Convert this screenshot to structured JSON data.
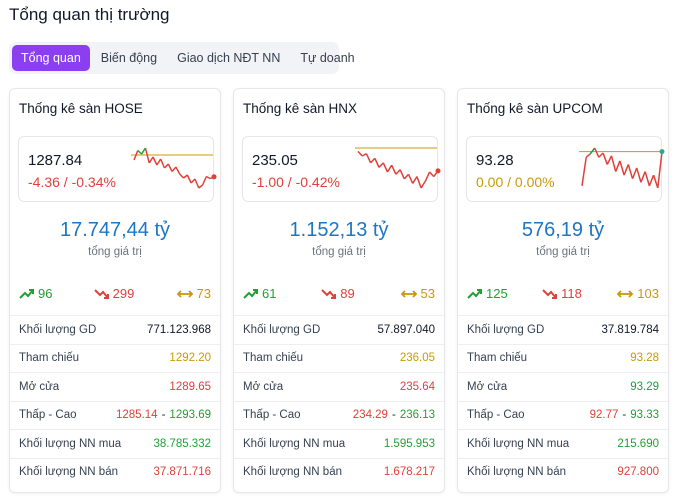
{
  "page": {
    "title": "Tổng quan thị trường"
  },
  "tabs": [
    {
      "label": "Tổng quan",
      "active": true
    },
    {
      "label": "Biến động",
      "active": false
    },
    {
      "label": "Giao dịch NĐT NN",
      "active": false
    },
    {
      "label": "Tự doanh",
      "active": false
    }
  ],
  "colors": {
    "up": "#22a034",
    "down": "#e0403a",
    "ref": "#c99a06",
    "accent": "#8b3ff0",
    "total": "#1d76c3"
  },
  "row_labels": {
    "volume": "Khối lượng GD",
    "ref": "Tham chiếu",
    "open": "Mở cửa",
    "range": "Thấp - Cao",
    "range_sep": "-",
    "foreign_buy": "Khối lượng NN mua",
    "foreign_sell": "Khối lượng NN bán"
  },
  "total_label": "tổng giá trị",
  "cards": [
    {
      "title": "Thống kê sàn HOSE",
      "index": "1287.84",
      "change": "-4.36 / -0.34%",
      "change_dir": "down",
      "total_value": "17.747,44 tỷ",
      "advances": "96",
      "declines": "299",
      "unchanged": "73",
      "volume": "771.123.968",
      "ref": "1292.20",
      "open": "1289.65",
      "low": "1285.14",
      "high": "1293.69",
      "foreign_buy": "38.785.332",
      "foreign_sell": "37.871.716",
      "spark": {
        "ref": 1292.2,
        "last_dir": "down",
        "values": [
          1291.2,
          1293.1,
          1292.4,
          1293.6,
          1290.6,
          1291.8,
          1290.2,
          1291.4,
          1289.6,
          1290.4,
          1288.9,
          1289.8,
          1288.4,
          1287.6,
          1288.2,
          1286.6,
          1287.4,
          1285.6,
          1286.2,
          1287.9,
          1287.5,
          1287.84
        ]
      }
    },
    {
      "title": "Thống kê sàn HNX",
      "index": "235.05",
      "change": "-1.00 / -0.42%",
      "change_dir": "down",
      "total_value": "1.152,13 tỷ",
      "advances": "61",
      "declines": "89",
      "unchanged": "53",
      "volume": "57.897.040",
      "ref": "236.05",
      "open": "235.64",
      "low": "234.29",
      "high": "236.13",
      "foreign_buy": "1.595.953",
      "foreign_sell": "1.678.217",
      "spark": {
        "ref": 236.05,
        "last_dir": "down",
        "values": [
          235.9,
          235.7,
          235.8,
          235.4,
          235.6,
          235.2,
          235.4,
          235.0,
          235.3,
          234.9,
          235.1,
          234.7,
          234.9,
          234.5,
          234.8,
          234.3,
          234.6,
          235.0,
          234.8,
          235.05
        ]
      }
    },
    {
      "title": "Thống kê sàn UPCOM",
      "index": "93.28",
      "change": "0.00 / 0.00%",
      "change_dir": "ref",
      "total_value": "576,19 tỷ",
      "advances": "125",
      "declines": "118",
      "unchanged": "103",
      "volume": "37.819.784",
      "ref": "93.28",
      "open": "93.29",
      "low": "92.77",
      "high": "93.33",
      "foreign_buy": "215.690",
      "foreign_sell": "927.800",
      "spark": {
        "ref": 93.28,
        "last_dir": "up",
        "values": [
          92.8,
          93.2,
          93.25,
          93.33,
          93.2,
          93.26,
          93.1,
          93.22,
          93.0,
          93.15,
          92.95,
          93.1,
          92.9,
          93.05,
          92.85,
          93.0,
          92.8,
          92.95,
          92.77,
          93.28
        ]
      }
    }
  ]
}
